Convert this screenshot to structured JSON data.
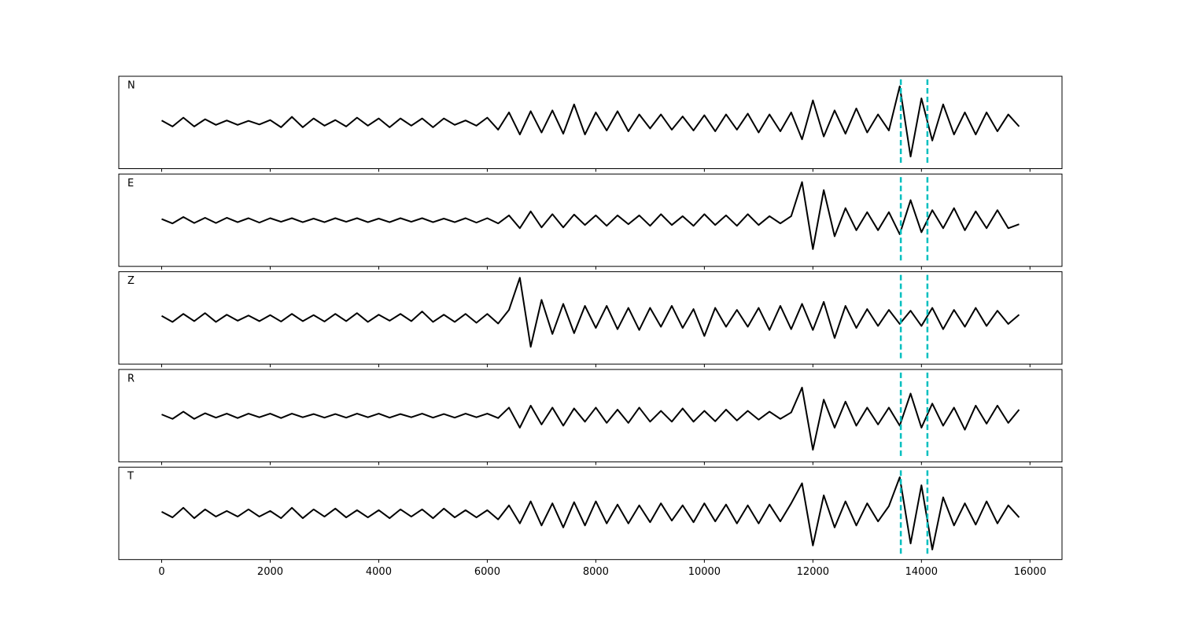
{
  "chart_data": {
    "type": "line",
    "subplots": true,
    "x": [
      0,
      200,
      400,
      600,
      800,
      1000,
      1200,
      1400,
      1600,
      1800,
      2000,
      2200,
      2400,
      2600,
      2800,
      3000,
      3200,
      3400,
      3600,
      3800,
      4000,
      4200,
      4400,
      4600,
      4800,
      5000,
      5200,
      5400,
      5600,
      5800,
      6000,
      6200,
      6400,
      6600,
      6800,
      7000,
      7200,
      7400,
      7600,
      7800,
      8000,
      8200,
      8400,
      8600,
      8800,
      9000,
      9200,
      9400,
      9600,
      9800,
      10000,
      10200,
      10400,
      10600,
      10800,
      11000,
      11200,
      11400,
      11600,
      11800,
      12000,
      12200,
      12400,
      12600,
      12800,
      13000,
      13200,
      13400,
      13600,
      13800,
      14000,
      14200,
      14400,
      14600,
      14800,
      15000,
      15200,
      15400,
      15600,
      15800
    ],
    "series": [
      {
        "name": "N",
        "color": "#000000",
        "values": [
          0.05,
          -0.1,
          0.12,
          -0.1,
          0.08,
          -0.06,
          0.05,
          -0.06,
          0.04,
          -0.05,
          0.06,
          -0.12,
          0.14,
          -0.12,
          0.1,
          -0.08,
          0.06,
          -0.1,
          0.12,
          -0.08,
          0.1,
          -0.12,
          0.1,
          -0.08,
          0.1,
          -0.12,
          0.1,
          -0.06,
          0.05,
          -0.08,
          0.12,
          -0.18,
          0.25,
          -0.3,
          0.28,
          -0.25,
          0.3,
          -0.28,
          0.45,
          -0.3,
          0.25,
          -0.2,
          0.28,
          -0.22,
          0.2,
          -0.15,
          0.2,
          -0.18,
          0.15,
          -0.2,
          0.18,
          -0.22,
          0.2,
          -0.18,
          0.22,
          -0.25,
          0.2,
          -0.22,
          0.25,
          -0.42,
          0.55,
          -0.35,
          0.3,
          -0.28,
          0.35,
          -0.25,
          0.2,
          -0.2,
          0.9,
          -0.85,
          0.6,
          -0.45,
          0.45,
          -0.3,
          0.25,
          -0.3,
          0.25,
          -0.22,
          0.2,
          -0.1
        ]
      },
      {
        "name": "E",
        "color": "#000000",
        "values": [
          0.03,
          -0.08,
          0.08,
          -0.07,
          0.06,
          -0.07,
          0.06,
          -0.05,
          0.05,
          -0.06,
          0.05,
          -0.04,
          0.05,
          -0.05,
          0.04,
          -0.05,
          0.05,
          -0.04,
          0.05,
          -0.05,
          0.04,
          -0.05,
          0.05,
          -0.04,
          0.05,
          -0.05,
          0.04,
          -0.05,
          0.05,
          -0.06,
          0.05,
          -0.08,
          0.12,
          -0.2,
          0.22,
          -0.18,
          0.15,
          -0.18,
          0.14,
          -0.12,
          0.12,
          -0.14,
          0.12,
          -0.1,
          0.12,
          -0.14,
          0.15,
          -0.12,
          0.1,
          -0.14,
          0.15,
          -0.12,
          0.12,
          -0.14,
          0.15,
          -0.12,
          0.1,
          -0.08,
          0.1,
          0.95,
          -0.72,
          0.75,
          -0.4,
          0.3,
          -0.25,
          0.2,
          -0.25,
          0.2,
          -0.35,
          0.5,
          -0.3,
          0.25,
          -0.2,
          0.3,
          -0.25,
          0.22,
          -0.2,
          0.25,
          -0.2,
          -0.1
        ]
      },
      {
        "name": "Z",
        "color": "#000000",
        "values": [
          0.05,
          -0.1,
          0.1,
          -0.08,
          0.12,
          -0.1,
          0.08,
          -0.07,
          0.06,
          -0.08,
          0.07,
          -0.09,
          0.1,
          -0.08,
          0.07,
          -0.09,
          0.1,
          -0.08,
          0.12,
          -0.1,
          0.08,
          -0.07,
          0.1,
          -0.08,
          0.16,
          -0.1,
          0.08,
          -0.1,
          0.1,
          -0.12,
          0.1,
          -0.14,
          0.2,
          1.0,
          -0.72,
          0.45,
          -0.4,
          0.35,
          -0.38,
          0.3,
          -0.25,
          0.3,
          -0.28,
          0.25,
          -0.3,
          0.25,
          -0.22,
          0.3,
          -0.25,
          0.22,
          -0.45,
          0.25,
          -0.22,
          0.2,
          -0.22,
          0.25,
          -0.3,
          0.3,
          -0.28,
          0.35,
          -0.3,
          0.4,
          -0.5,
          0.3,
          -0.25,
          0.22,
          -0.2,
          0.2,
          -0.15,
          0.18,
          -0.2,
          0.25,
          -0.28,
          0.2,
          -0.22,
          0.25,
          -0.2,
          0.18,
          -0.15,
          0.08
        ]
      },
      {
        "name": "R",
        "color": "#000000",
        "values": [
          0.03,
          -0.08,
          0.1,
          -0.08,
          0.06,
          -0.05,
          0.05,
          -0.06,
          0.05,
          -0.04,
          0.05,
          -0.06,
          0.05,
          -0.04,
          0.04,
          -0.05,
          0.04,
          -0.05,
          0.05,
          -0.04,
          0.05,
          -0.05,
          0.04,
          -0.04,
          0.05,
          -0.05,
          0.04,
          -0.05,
          0.05,
          -0.04,
          0.05,
          -0.06,
          0.2,
          -0.3,
          0.25,
          -0.22,
          0.2,
          -0.25,
          0.18,
          -0.15,
          0.2,
          -0.18,
          0.15,
          -0.18,
          0.2,
          -0.15,
          0.12,
          -0.15,
          0.18,
          -0.15,
          0.12,
          -0.14,
          0.15,
          -0.12,
          0.12,
          -0.1,
          0.1,
          -0.08,
          0.08,
          0.7,
          -0.85,
          0.4,
          -0.3,
          0.35,
          -0.25,
          0.2,
          -0.22,
          0.2,
          -0.25,
          0.55,
          -0.3,
          0.3,
          -0.25,
          0.2,
          -0.35,
          0.25,
          -0.2,
          0.25,
          -0.18,
          0.15
        ]
      },
      {
        "name": "T",
        "color": "#000000",
        "values": [
          0.04,
          -0.1,
          0.14,
          -0.12,
          0.1,
          -0.08,
          0.06,
          -0.08,
          0.1,
          -0.08,
          0.06,
          -0.12,
          0.14,
          -0.12,
          0.1,
          -0.08,
          0.12,
          -0.1,
          0.08,
          -0.1,
          0.08,
          -0.12,
          0.1,
          -0.08,
          0.1,
          -0.12,
          0.12,
          -0.1,
          0.08,
          -0.1,
          0.08,
          -0.15,
          0.2,
          -0.25,
          0.3,
          -0.3,
          0.25,
          -0.35,
          0.28,
          -0.3,
          0.3,
          -0.25,
          0.22,
          -0.25,
          0.2,
          -0.22,
          0.25,
          -0.18,
          0.2,
          -0.22,
          0.25,
          -0.2,
          0.22,
          -0.25,
          0.2,
          -0.25,
          0.22,
          -0.2,
          0.25,
          0.75,
          -0.8,
          0.45,
          -0.35,
          0.3,
          -0.3,
          0.25,
          -0.2,
          0.18,
          0.9,
          -0.75,
          0.7,
          -0.9,
          0.4,
          -0.3,
          0.25,
          -0.28,
          0.3,
          -0.25,
          0.2,
          -0.1
        ]
      }
    ],
    "markers": [
      13620,
      14110
    ],
    "marker_color": "#00bfbf",
    "xlim": [
      -790,
      16590
    ],
    "xticks": [
      0,
      2000,
      4000,
      6000,
      8000,
      10000,
      12000,
      14000,
      16000
    ],
    "ylim": [
      -1.15,
      1.15
    ]
  }
}
